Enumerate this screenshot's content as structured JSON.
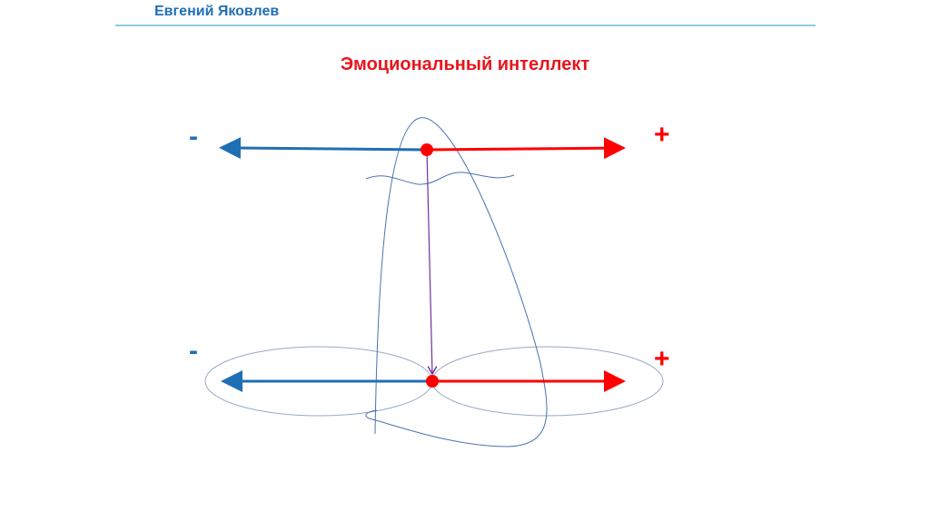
{
  "header": {
    "author": "Евгений Яковлев"
  },
  "title": "Эмоциональный интеллект",
  "signs": {
    "top_minus": "-",
    "top_plus": "+",
    "bottom_minus": "-",
    "bottom_plus": "+"
  },
  "colors": {
    "negative": "#1f6fb5",
    "positive": "#ff0000",
    "sketch": "#4a72b0",
    "connector": "#7030a0",
    "ellipse": "#9aa8c4"
  }
}
